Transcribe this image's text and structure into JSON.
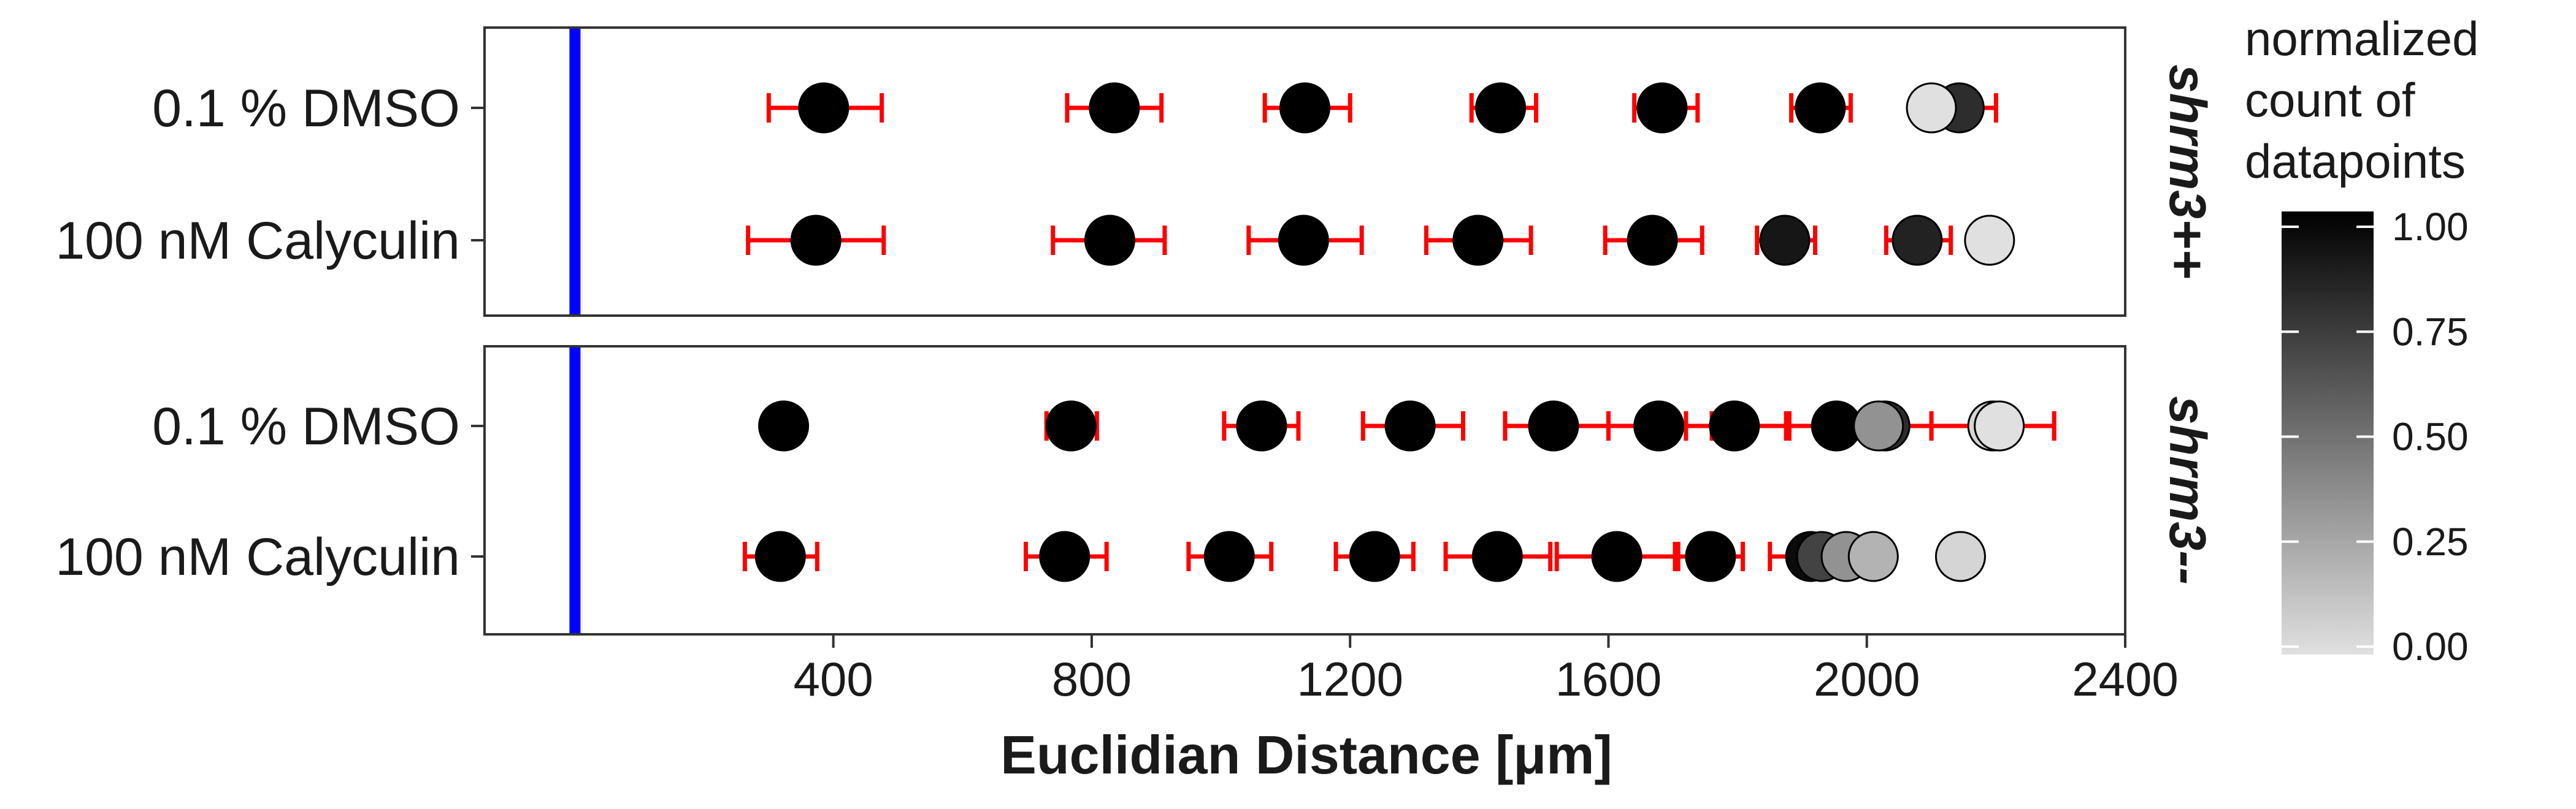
{
  "chart_data": {
    "type": "scatter",
    "xlabel": "Euclidian Distance [μm]",
    "xlim": [
      -140,
      2400
    ],
    "x_ticks": [
      "400",
      "800",
      "1200",
      "1600",
      "2000",
      "2400"
    ],
    "reference_line_x": 0,
    "reference_line_color": "#0000ff",
    "errorbar_color": "#ff0000",
    "panels": [
      {
        "label": "shrm3++",
        "rows": [
          {
            "label": "0.1 % DMSO",
            "points": [
              {
                "x": 385,
                "xmin": 300,
                "xmax": 475,
                "count": 1.0
              },
              {
                "x": 835,
                "xmin": 762,
                "xmax": 908,
                "count": 1.0
              },
              {
                "x": 1130,
                "xmin": 1068,
                "xmin_note": "",
                "xmax": 1200,
                "count": 1.0
              },
              {
                "x": 1433,
                "xmin": 1388,
                "xmax": 1488,
                "count": 1.0
              },
              {
                "x": 1683,
                "xmin": 1640,
                "xmax": 1738,
                "count": 1.0
              },
              {
                "x": 1928,
                "xmin": 1883,
                "xmax": 1975,
                "count": 1.0
              },
              {
                "x": 2143,
                "xmin": 2080,
                "xmax": 2200,
                "count": 0.8
              },
              {
                "x": 2100,
                "xmin": 2100,
                "xmax": 2100,
                "count": 0.0
              }
            ]
          },
          {
            "label": "100 nM Calyculin",
            "points": [
              {
                "x": 373,
                "xmin": 268,
                "xmax": 478,
                "count": 1.0
              },
              {
                "x": 828,
                "xmin": 740,
                "xmax": 913,
                "count": 1.0
              },
              {
                "x": 1128,
                "xmin": 1043,
                "xmax": 1218,
                "count": 1.0
              },
              {
                "x": 1398,
                "xmin": 1318,
                "xmax": 1480,
                "count": 1.0
              },
              {
                "x": 1668,
                "xmin": 1595,
                "xmax": 1745,
                "count": 1.0
              },
              {
                "x": 1873,
                "xmin": 1830,
                "xmax": 1920,
                "count": 0.9
              },
              {
                "x": 2078,
                "xmin": 2030,
                "xmax": 2130,
                "count": 0.85
              },
              {
                "x": 2190,
                "xmin": 2190,
                "xmax": 2190,
                "count": 0.0
              }
            ]
          }
        ]
      },
      {
        "label": "shrm3--",
        "rows": [
          {
            "label": "0.1 % DMSO",
            "points": [
              {
                "x": 323,
                "xmin": 323,
                "xmax": 323,
                "count": 1.0
              },
              {
                "x": 768,
                "xmin": 730,
                "xmax": 808,
                "count": 1.0
              },
              {
                "x": 1063,
                "xmin": 1005,
                "xmax": 1120,
                "count": 1.0
              },
              {
                "x": 1293,
                "xmin": 1220,
                "xmax": 1375,
                "count": 1.0
              },
              {
                "x": 1515,
                "xmin": 1440,
                "xmax": 1600,
                "count": 1.0
              },
              {
                "x": 1678,
                "xmin": 1600,
                "xmax": 1760,
                "count": 1.0
              },
              {
                "x": 1795,
                "xmin": 1720,
                "xmax": 1875,
                "count": 1.0
              },
              {
                "x": 1953,
                "xmin": 1880,
                "xmax": 2030,
                "count": 1.0
              },
              {
                "x": 2028,
                "xmin": 1960,
                "xmax": 2100,
                "count": 0.8
              },
              {
                "x": 2018,
                "xmin": 2018,
                "xmax": 2018,
                "count": 0.35
              },
              {
                "x": 2195,
                "xmin": 2100,
                "xmax": 2290,
                "count": 0.05
              },
              {
                "x": 2205,
                "xmin": 2205,
                "xmax": 2205,
                "count": 0.0
              }
            ]
          },
          {
            "label": "100 nM Calyculin",
            "points": [
              {
                "x": 318,
                "xmin": 263,
                "xmax": 375,
                "count": 1.0
              },
              {
                "x": 758,
                "xmin": 698,
                "xmax": 823,
                "count": 1.0
              },
              {
                "x": 1013,
                "xmin": 950,
                "xmax": 1078,
                "count": 1.0
              },
              {
                "x": 1238,
                "xmin": 1178,
                "xmax": 1298,
                "count": 1.0
              },
              {
                "x": 1428,
                "xmin": 1348,
                "xmax": 1510,
                "count": 1.0
              },
              {
                "x": 1613,
                "xmin": 1520,
                "xmax": 1703,
                "count": 1.0
              },
              {
                "x": 1758,
                "xmin": 1708,
                "xmax": 1808,
                "count": 1.0
              },
              {
                "x": 1913,
                "xmin": 1850,
                "xmax": 1970,
                "count": 0.95
              },
              {
                "x": 1930,
                "xmin": 1930,
                "xmax": 1930,
                "count": 0.7
              },
              {
                "x": 1968,
                "xmin": 1968,
                "xmax": 1968,
                "count": 0.35
              },
              {
                "x": 2010,
                "xmin": 2010,
                "xmax": 2010,
                "count": 0.2
              },
              {
                "x": 2145,
                "xmin": 2145,
                "xmax": 2145,
                "count": 0.05
              }
            ]
          }
        ]
      }
    ],
    "legend": {
      "title_lines": [
        "normalized",
        "count of",
        "datapoints"
      ],
      "min": 0.0,
      "max": 1.0,
      "ticks": [
        "0.00",
        "0.25",
        "0.50",
        "0.75",
        "1.00"
      ],
      "low_color": "#e0e0e0",
      "high_color": "#000000",
      "placement": "right"
    }
  }
}
